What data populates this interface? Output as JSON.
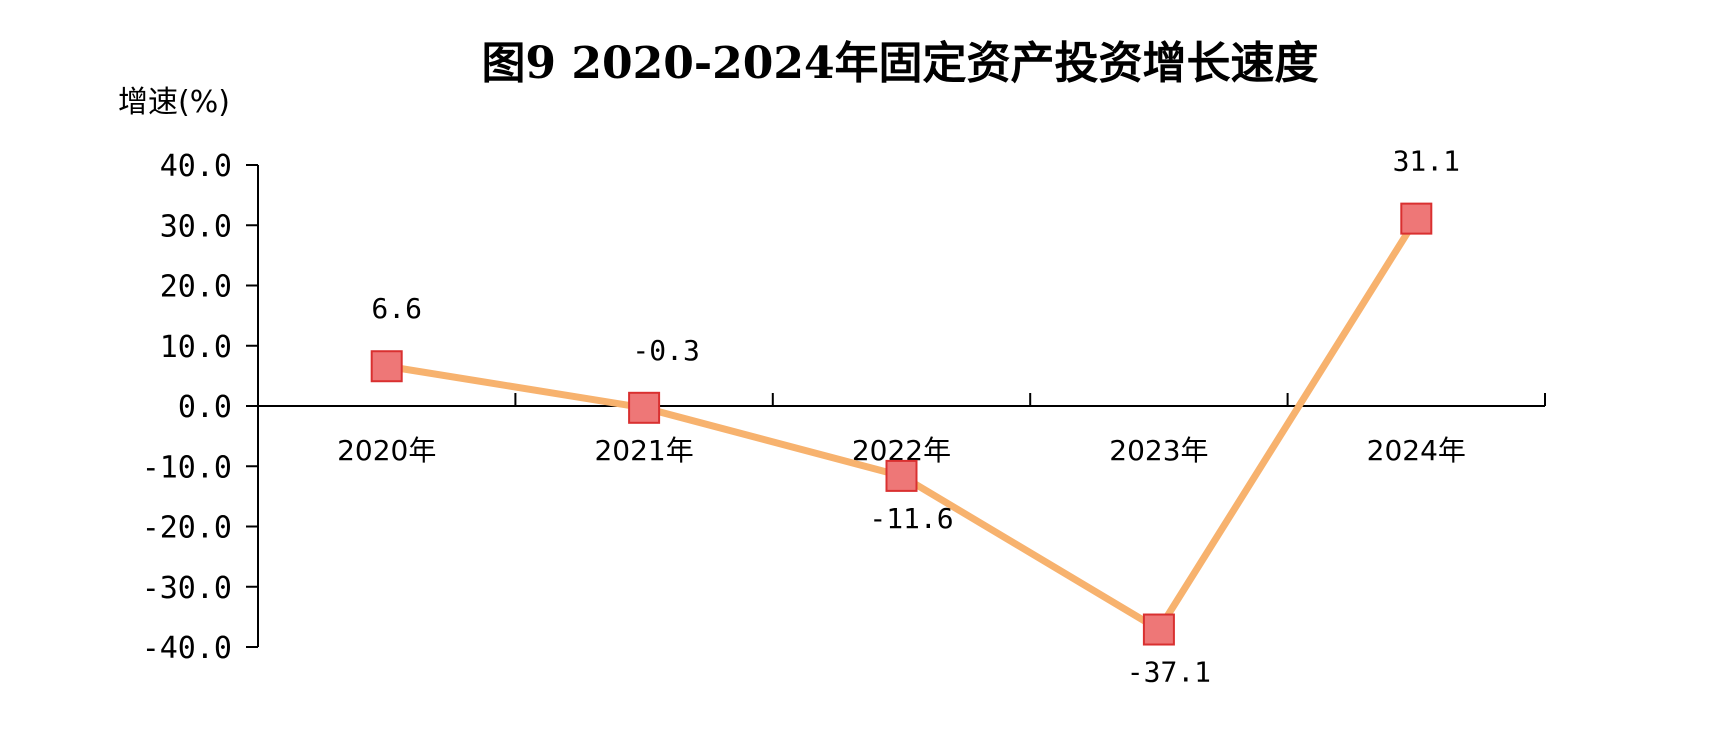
{
  "chart_data": {
    "type": "line",
    "title": "图9 2020-2024年固定资产投资增长速度",
    "ylabel": "增速(%)",
    "xlabel": "",
    "categories": [
      "2020年",
      "2021年",
      "2022年",
      "2023年",
      "2024年"
    ],
    "values": [
      6.6,
      -0.3,
      -11.6,
      -37.1,
      31.1
    ],
    "data_labels": [
      "6.6",
      "-0.3",
      "-11.6",
      "-37.1",
      "31.1"
    ],
    "ylim": [
      -40,
      40
    ],
    "y_ticks": [
      "40.0",
      "30.0",
      "20.0",
      "10.0",
      "0.0",
      "-10.0",
      "-20.0",
      "-30.0",
      "-40.0"
    ],
    "y_tick_values": [
      40,
      30,
      20,
      10,
      0,
      -10,
      -20,
      -30,
      -40
    ],
    "grid": false,
    "legend": "none",
    "colors": {
      "line": "#f7b26e",
      "marker_fill": "#ee7777",
      "marker_stroke": "#d93030",
      "axis": "#000000"
    }
  }
}
